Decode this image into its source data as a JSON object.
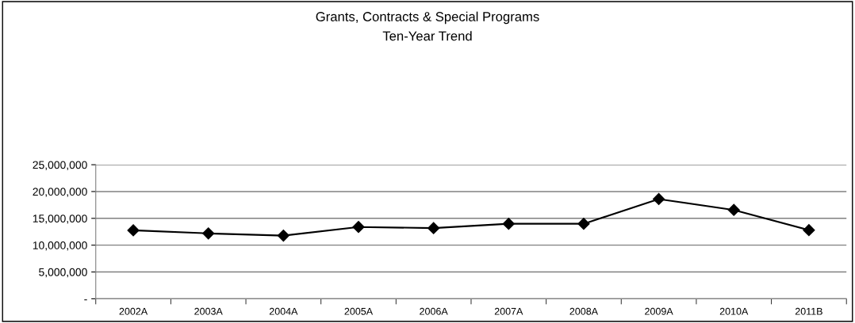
{
  "chart_data": {
    "type": "line",
    "title": "Grants, Contracts & Special Programs",
    "subtitle": "Ten-Year Trend",
    "categories": [
      "2002A",
      "2003A",
      "2004A",
      "2005A",
      "2006A",
      "2007A",
      "2008A",
      "2009A",
      "2010A",
      "2011B"
    ],
    "series": [
      {
        "color": "#000000",
        "values": [
          12770000,
          12190000,
          11780000,
          13390000,
          13180000,
          13990000,
          13990000,
          18600000,
          16570000,
          12800000
        ]
      }
    ],
    "ylim": [
      0,
      25000000
    ],
    "yticks": [
      {
        "value": 0,
        "label": "-"
      },
      {
        "value": 5000000,
        "label": "5,000,000"
      },
      {
        "value": 10000000,
        "label": "10,000,000"
      },
      {
        "value": 15000000,
        "label": "15,000,000"
      },
      {
        "value": 20000000,
        "label": "20,000,000"
      },
      {
        "value": 25000000,
        "label": "25,000,000"
      }
    ],
    "grid": "y",
    "marker": "diamond",
    "line_style": "solid",
    "legend": false
  }
}
